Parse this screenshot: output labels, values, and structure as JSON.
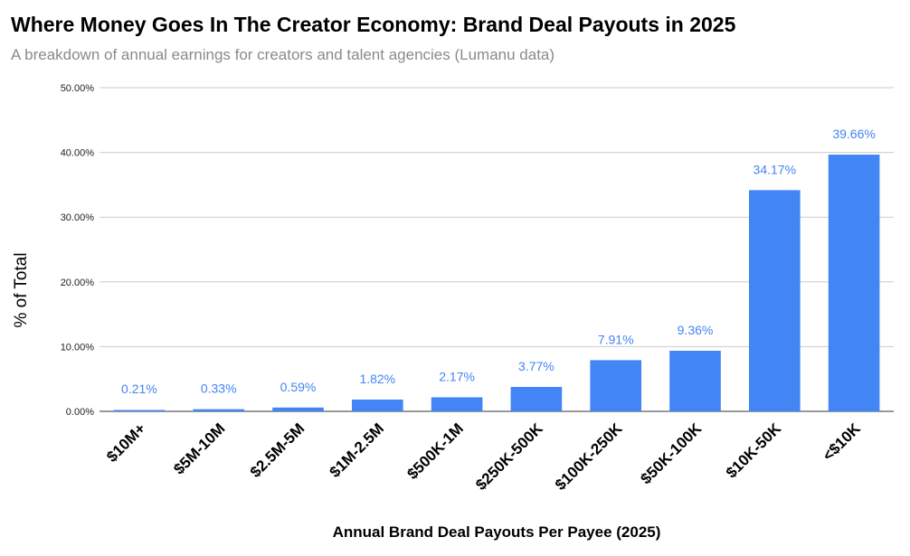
{
  "chart_data": {
    "type": "bar",
    "title": "Where Money Goes In The Creator Economy: Brand Deal Payouts in 2025",
    "subtitle": "A breakdown of annual earnings for creators and talent agencies (Lumanu data)",
    "xlabel": "Annual Brand Deal Payouts Per Payee (2025)",
    "ylabel": "% of Total",
    "categories": [
      "$10M+",
      "$5M-10M",
      "$2.5M-5M",
      "$1M-2.5M",
      "$500K-1M",
      "$250K-500K",
      "$100K-250K",
      "$50K-100K",
      "$10K-50K",
      "<$10K"
    ],
    "values": [
      0.21,
      0.33,
      0.59,
      1.82,
      2.17,
      3.77,
      7.91,
      9.36,
      34.17,
      39.66
    ],
    "data_labels": [
      "0.21%",
      "0.33%",
      "0.59%",
      "1.82%",
      "2.17%",
      "3.77%",
      "7.91%",
      "9.36%",
      "34.17%",
      "39.66%"
    ],
    "ylim": [
      0,
      50
    ],
    "yticks": [
      0,
      10,
      20,
      30,
      40,
      50
    ],
    "ytick_labels": [
      "0.00%",
      "10.00%",
      "20.00%",
      "30.00%",
      "40.00%",
      "50.00%"
    ],
    "grid": true,
    "legend": "none",
    "colors": {
      "bar": "#4285f4",
      "label": "#4285f4",
      "grid": "#cccccc",
      "axis": "#333333"
    }
  }
}
